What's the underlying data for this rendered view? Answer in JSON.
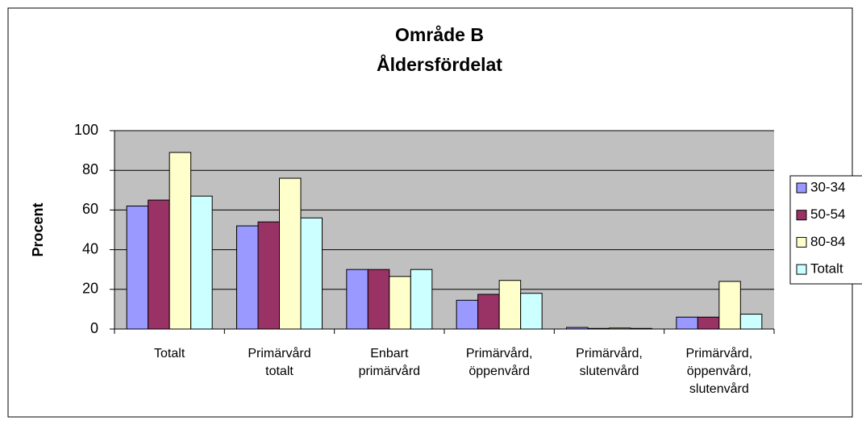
{
  "chart_data": {
    "type": "bar",
    "title": "Område B",
    "subtitle": "Åldersfördelat",
    "y_label": "Procent",
    "categories": [
      "Totalt",
      "Primärvård\ntotalt",
      "Enbart\nprimärvård",
      "Primärvård,\nöppenvård",
      "Primärvård,\nslutenvård",
      "Primärvård,\nöppenvård,\nslutenvård"
    ],
    "series": [
      {
        "name": "30-34",
        "color": "#9999ff",
        "values": [
          62,
          52,
          30,
          14.5,
          0.8,
          6
        ]
      },
      {
        "name": "50-54",
        "color": "#993366",
        "values": [
          65,
          54,
          30,
          17.5,
          0.3,
          6
        ]
      },
      {
        "name": "80-84",
        "color": "#ffffcc",
        "values": [
          89,
          76,
          26.5,
          24.5,
          0.5,
          24
        ]
      },
      {
        "name": "Totalt",
        "color": "#ccffff",
        "values": [
          67,
          56,
          30,
          18,
          0.3,
          7.5
        ]
      }
    ],
    "ylim": [
      0,
      100
    ],
    "yticks": [
      0,
      20,
      40,
      60,
      80,
      100
    ],
    "grid": true,
    "legend": "right"
  }
}
